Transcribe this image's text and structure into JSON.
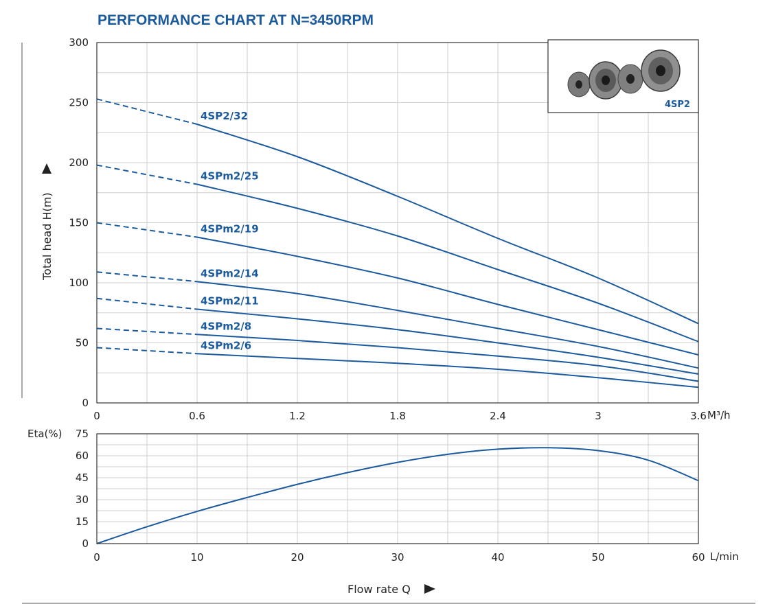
{
  "chart_data": [
    {
      "type": "line",
      "title": "PERFORMANCE CHART AT N=3450RPM",
      "ylabel": "Total head H(m)",
      "x_unit": "M³/h",
      "xlim": [
        0,
        3.6
      ],
      "ylim": [
        0,
        300
      ],
      "x_ticks": [
        "0",
        "0.6",
        "1.2",
        "1.8",
        "2.4",
        "3",
        "3.6"
      ],
      "y_ticks": [
        "0",
        "50",
        "100",
        "150",
        "200",
        "250",
        "300"
      ],
      "grid": true,
      "solid_from_x": 0.6,
      "series": [
        {
          "name": "4SP2/32",
          "x": [
            0,
            0.6,
            1.2,
            1.8,
            2.4,
            3.0,
            3.6
          ],
          "y": [
            253,
            232,
            205,
            172,
            137,
            104,
            66
          ]
        },
        {
          "name": "4SPm2/25",
          "x": [
            0,
            0.6,
            1.2,
            1.8,
            2.4,
            3.0,
            3.6
          ],
          "y": [
            198,
            182,
            162,
            139,
            111,
            83,
            51
          ]
        },
        {
          "name": "4SPm2/19",
          "x": [
            0,
            0.6,
            1.2,
            1.8,
            2.4,
            3.0,
            3.6
          ],
          "y": [
            150,
            138,
            122,
            104,
            82,
            61,
            40
          ]
        },
        {
          "name": "4SPm2/14",
          "x": [
            0,
            0.6,
            1.2,
            1.8,
            2.4,
            3.0,
            3.6
          ],
          "y": [
            109,
            101,
            91,
            77,
            62,
            47,
            29
          ]
        },
        {
          "name": "4SPm2/11",
          "x": [
            0,
            0.6,
            1.2,
            1.8,
            2.4,
            3.0,
            3.6
          ],
          "y": [
            87,
            78,
            70,
            61,
            50,
            38,
            24
          ]
        },
        {
          "name": "4SPm2/8",
          "x": [
            0,
            0.6,
            1.2,
            1.8,
            2.4,
            3.0,
            3.6
          ],
          "y": [
            62,
            57,
            52,
            46,
            39,
            31,
            18
          ]
        },
        {
          "name": "4SPm2/6",
          "x": [
            0,
            0.6,
            1.2,
            1.8,
            2.4,
            3.0,
            3.6
          ],
          "y": [
            46,
            41,
            37,
            33,
            28,
            21,
            13
          ]
        }
      ]
    },
    {
      "type": "line",
      "ylabel": "Eta(%)",
      "xlabel": "Flow rate Q",
      "x_unit": "L/min",
      "xlim": [
        0,
        60
      ],
      "ylim": [
        0,
        75
      ],
      "x_ticks": [
        "0",
        "10",
        "20",
        "30",
        "40",
        "50",
        "60"
      ],
      "y_ticks": [
        "0",
        "15",
        "30",
        "45",
        "60",
        "75"
      ],
      "grid": true,
      "series": [
        {
          "x": [
            0,
            5,
            10,
            15,
            20,
            25,
            30,
            35,
            40,
            45,
            50,
            55,
            60
          ],
          "y": [
            0,
            11.5,
            22,
            31.5,
            40.5,
            48.5,
            55.5,
            61,
            64.5,
            65.5,
            63.5,
            57,
            43
          ]
        }
      ]
    }
  ],
  "photo_caption": "4SP2",
  "colors": {
    "curve": "#1b5a9c",
    "title": "#1b5a9c",
    "grid": "#cfcfcf"
  }
}
